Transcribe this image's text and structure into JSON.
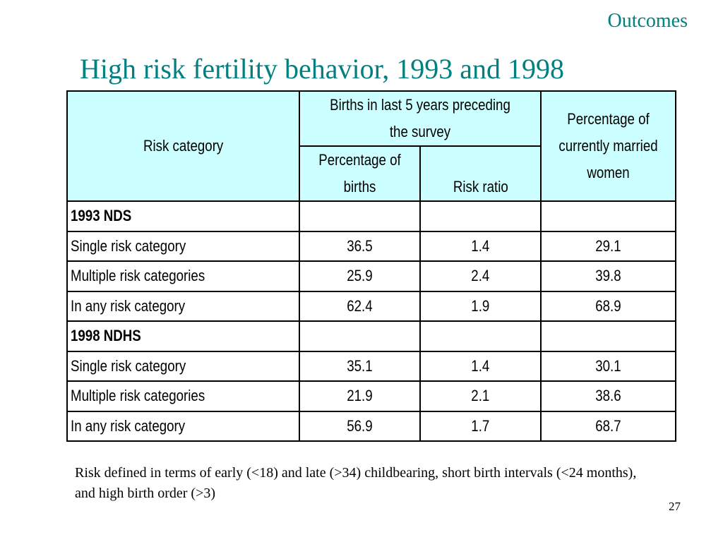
{
  "header": {
    "section": "Outcomes",
    "title": "High risk fertility behavior, 1993 and 1998"
  },
  "table": {
    "headers": {
      "risk_category": "Risk category",
      "births_group": "Births in last 5 years preceding the survey",
      "pct_births": "Percentage of births",
      "risk_ratio": "Risk ratio",
      "pct_women": "Percentage of currently married women"
    },
    "groups": [
      {
        "name": "1993 NDS",
        "rows": [
          {
            "category": "Single risk category",
            "pct_births": "36.5",
            "risk_ratio": "1.4",
            "pct_women": "29.1"
          },
          {
            "category": "Multiple risk categories",
            "pct_births": "25.9",
            "risk_ratio": "2.4",
            "pct_women": "39.8"
          },
          {
            "category": "In any risk category",
            "pct_births": "62.4",
            "risk_ratio": "1.9",
            "pct_women": "68.9"
          }
        ]
      },
      {
        "name": "1998 NDHS",
        "rows": [
          {
            "category": "Single risk category",
            "pct_births": "35.1",
            "risk_ratio": "1.4",
            "pct_women": "30.1"
          },
          {
            "category": "Multiple risk categories",
            "pct_births": "21.9",
            "risk_ratio": "2.1",
            "pct_women": "38.6"
          },
          {
            "category": "In any risk category",
            "pct_births": "56.9",
            "risk_ratio": "1.7",
            "pct_women": "68.7"
          }
        ]
      }
    ]
  },
  "footnote": "Risk defined in terms of early (<18) and late (>34) childbearing, short birth intervals (<24 months), and high birth order (>3)",
  "page_number": "27",
  "colors": {
    "title": "#008080",
    "header_fill": "#ccffff",
    "border": "#000000"
  }
}
